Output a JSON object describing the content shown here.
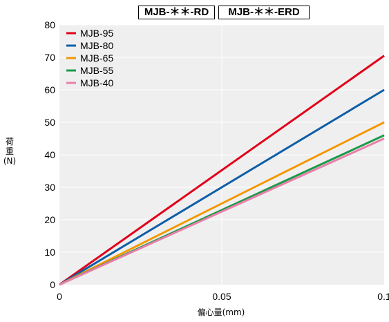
{
  "chart_data": {
    "type": "line",
    "titles": [
      "MJB-＊＊-RD",
      "MJB-＊＊-ERD"
    ],
    "xlabel": "偏心量(mm)",
    "ylabel": [
      "荷",
      "重",
      "(N)"
    ],
    "xlim": [
      0,
      0.1
    ],
    "ylim": [
      0,
      80
    ],
    "xticks": [
      0,
      0.05,
      0.1
    ],
    "xtick_labels": [
      "0",
      "0.05",
      "0.1"
    ],
    "yticks": [
      0,
      10,
      20,
      30,
      40,
      50,
      60,
      70,
      80
    ],
    "ytick_labels": [
      "0",
      "10",
      "20",
      "30",
      "40",
      "50",
      "60",
      "70",
      "80"
    ],
    "grid": true,
    "legend_position": "top-left",
    "series": [
      {
        "name": "MJB-95",
        "color": "#e2001a",
        "x": [
          0,
          0.1
        ],
        "y": [
          0,
          70.5
        ]
      },
      {
        "name": "MJB-80",
        "color": "#0e5ea8",
        "x": [
          0,
          0.1
        ],
        "y": [
          0,
          60
        ]
      },
      {
        "name": "MJB-65",
        "color": "#f39800",
        "x": [
          0,
          0.1
        ],
        "y": [
          0,
          50
        ]
      },
      {
        "name": "MJB-55",
        "color": "#1c9a48",
        "x": [
          0,
          0.1
        ],
        "y": [
          0,
          46
        ]
      },
      {
        "name": "MJB-40",
        "color": "#e97fab",
        "x": [
          0,
          0.1
        ],
        "y": [
          0,
          45
        ]
      }
    ]
  }
}
